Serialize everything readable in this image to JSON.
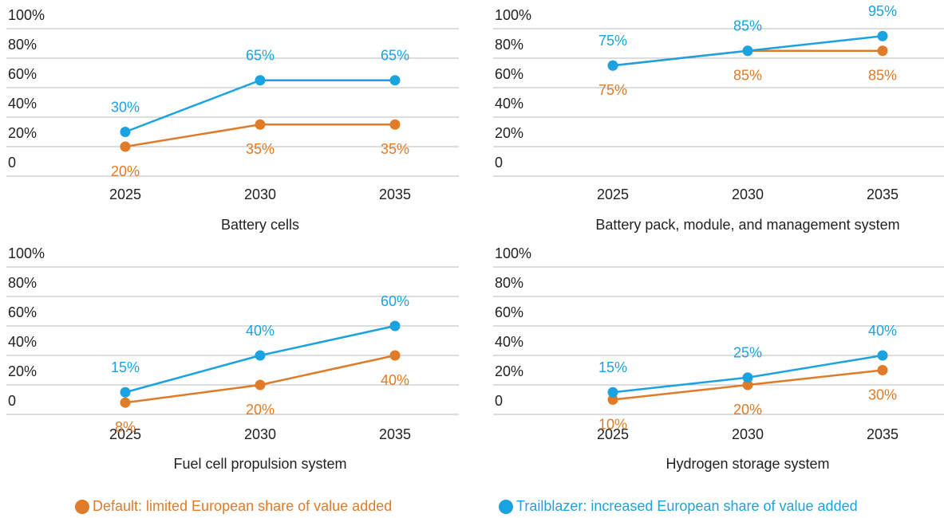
{
  "chart_data": [
    {
      "type": "line",
      "title": "Battery cells",
      "x": [
        2025,
        2030,
        2035
      ],
      "ylim": [
        0,
        100
      ],
      "yticks": [
        0,
        {
          "value": 20,
          "label": "20%"
        },
        {
          "value": 40,
          "label": "40%"
        },
        {
          "value": 60,
          "label": "60%"
        },
        {
          "value": 80,
          "label": "80%"
        },
        {
          "value": 100,
          "label": "100%"
        }
      ],
      "grid": true,
      "series": [
        {
          "values": [
            20,
            35,
            35
          ],
          "value_labels": [
            "20%",
            "35%",
            "35%"
          ]
        },
        {
          "values": [
            30,
            65,
            65
          ],
          "value_labels": [
            "30%",
            "65%",
            "65%"
          ]
        }
      ]
    },
    {
      "type": "line",
      "title": "Battery pack, module, and management system",
      "x": [
        2025,
        2030,
        2035
      ],
      "ylim": [
        0,
        100
      ],
      "yticks": [
        0,
        {
          "value": 20,
          "label": "20%"
        },
        {
          "value": 40,
          "label": "40%"
        },
        {
          "value": 60,
          "label": "60%"
        },
        {
          "value": 80,
          "label": "80%"
        },
        {
          "value": 100,
          "label": "100%"
        }
      ],
      "grid": true,
      "series": [
        {
          "values": [
            75,
            85,
            85
          ],
          "value_labels": [
            "75%",
            "85%",
            "85%"
          ]
        },
        {
          "values": [
            75,
            85,
            95
          ],
          "value_labels": [
            "75%",
            "85%",
            "95%"
          ]
        }
      ]
    },
    {
      "type": "line",
      "title": "Fuel cell propulsion system",
      "x": [
        2025,
        2030,
        2035
      ],
      "ylim": [
        0,
        100
      ],
      "yticks": [
        0,
        {
          "value": 20,
          "label": "20%"
        },
        {
          "value": 40,
          "label": "40%"
        },
        {
          "value": 60,
          "label": "60%"
        },
        {
          "value": 80,
          "label": "80%"
        },
        {
          "value": 100,
          "label": "100%"
        }
      ],
      "grid": true,
      "series": [
        {
          "values": [
            8,
            20,
            40
          ],
          "value_labels": [
            "8%",
            "20%",
            "40%"
          ]
        },
        {
          "values": [
            15,
            40,
            60
          ],
          "value_labels": [
            "15%",
            "40%",
            "60%"
          ]
        }
      ]
    },
    {
      "type": "line",
      "title": "Hydrogen storage system",
      "x": [
        2025,
        2030,
        2035
      ],
      "ylim": [
        0,
        100
      ],
      "yticks": [
        0,
        {
          "value": 20,
          "label": "20%"
        },
        {
          "value": 40,
          "label": "40%"
        },
        {
          "value": 60,
          "label": "60%"
        },
        {
          "value": 80,
          "label": "80%"
        },
        {
          "value": 100,
          "label": "100%"
        }
      ],
      "grid": true,
      "series": [
        {
          "values": [
            10,
            20,
            30
          ],
          "value_labels": [
            "10%",
            "20%",
            "30%"
          ]
        },
        {
          "values": [
            15,
            25,
            40
          ],
          "value_labels": [
            "15%",
            "25%",
            "40%"
          ]
        }
      ]
    }
  ],
  "legend": [
    {
      "name": "Default: limited European share of value added",
      "color": "#e07b28"
    },
    {
      "name": "Trailblazer: increased European share of value added",
      "color": "#1aa3e0"
    }
  ]
}
